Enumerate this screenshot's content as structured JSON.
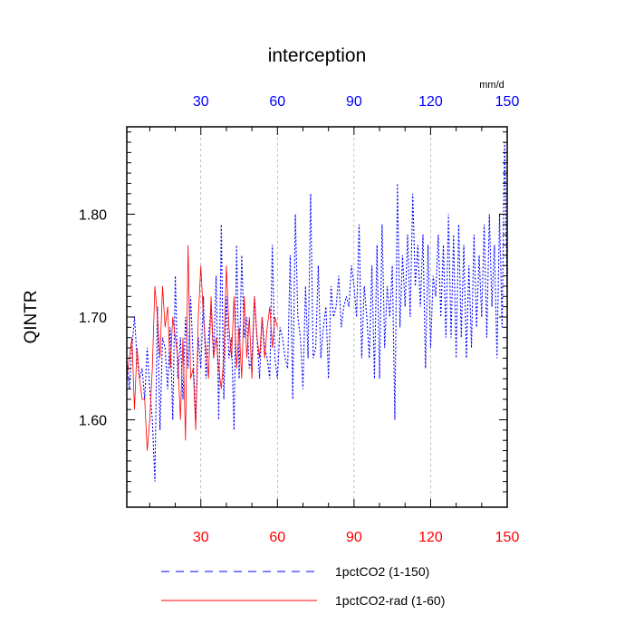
{
  "chart_data": {
    "type": "line",
    "title": "interception",
    "ylabel": "QINTR",
    "units": "mm/d",
    "xlim": [
      1,
      150
    ],
    "ylim": [
      1.515,
      1.885
    ],
    "grid": "vertical dashed at 30, 60, 90, 120",
    "legend_position": "bottom",
    "x_ticks_top": [
      "30",
      "60",
      "90",
      "120",
      "150"
    ],
    "x_ticks_bottom": [
      "30",
      "60",
      "90",
      "120",
      "150"
    ],
    "y_ticks": [
      "1.60",
      "1.70",
      "1.80"
    ],
    "colors": {
      "series_1": "#0000ff",
      "series_2": "#ff0000",
      "top_axis_labels": "#0000ff",
      "bottom_axis_labels": "#ff0000",
      "grid": "#999999"
    },
    "series": [
      {
        "name": "1pctCO2 (1-150)",
        "style": "dashed",
        "color": "#0000ff",
        "x_start": 1,
        "values": [
          1.66,
          1.63,
          1.67,
          1.7,
          1.66,
          1.64,
          1.65,
          1.62,
          1.67,
          1.63,
          1.6,
          1.54,
          1.71,
          1.59,
          1.68,
          1.67,
          1.63,
          1.69,
          1.6,
          1.74,
          1.64,
          1.68,
          1.62,
          1.7,
          1.65,
          1.72,
          1.66,
          1.6,
          1.68,
          1.65,
          1.72,
          1.64,
          1.68,
          1.71,
          1.66,
          1.74,
          1.6,
          1.79,
          1.62,
          1.72,
          1.66,
          1.68,
          1.59,
          1.77,
          1.64,
          1.76,
          1.68,
          1.7,
          1.65,
          1.66,
          1.72,
          1.68,
          1.64,
          1.7,
          1.67,
          1.66,
          1.64,
          1.77,
          1.66,
          1.64,
          1.69,
          1.68,
          1.66,
          1.65,
          1.76,
          1.62,
          1.8,
          1.7,
          1.68,
          1.63,
          1.73,
          1.66,
          1.82,
          1.66,
          1.67,
          1.75,
          1.66,
          1.69,
          1.71,
          1.64,
          1.73,
          1.7,
          1.71,
          1.74,
          1.69,
          1.71,
          1.72,
          1.71,
          1.75,
          1.73,
          1.7,
          1.79,
          1.66,
          1.73,
          1.7,
          1.66,
          1.75,
          1.64,
          1.77,
          1.64,
          1.79,
          1.67,
          1.73,
          1.7,
          1.75,
          1.6,
          1.83,
          1.69,
          1.76,
          1.71,
          1.78,
          1.7,
          1.82,
          1.73,
          1.77,
          1.71,
          1.78,
          1.65,
          1.77,
          1.67,
          1.74,
          1.72,
          1.78,
          1.7,
          1.77,
          1.68,
          1.8,
          1.68,
          1.78,
          1.66,
          1.79,
          1.68,
          1.77,
          1.66,
          1.75,
          1.67,
          1.78,
          1.69,
          1.76,
          1.7,
          1.79,
          1.68,
          1.8,
          1.71,
          1.77,
          1.66,
          1.8,
          1.69,
          1.87,
          1.72
        ]
      },
      {
        "name": "1pctCO2-rad (1-60)",
        "style": "solid",
        "color": "#ff0000",
        "x_start": 1,
        "values": [
          1.64,
          1.66,
          1.68,
          1.61,
          1.67,
          1.64,
          1.62,
          1.62,
          1.57,
          1.6,
          1.65,
          1.73,
          1.7,
          1.66,
          1.73,
          1.69,
          1.71,
          1.65,
          1.7,
          1.68,
          1.66,
          1.6,
          1.68,
          1.58,
          1.77,
          1.64,
          1.65,
          1.59,
          1.7,
          1.75,
          1.7,
          1.67,
          1.64,
          1.72,
          1.66,
          1.68,
          1.65,
          1.63,
          1.66,
          1.75,
          1.69,
          1.66,
          1.72,
          1.65,
          1.69,
          1.64,
          1.72,
          1.66,
          1.7,
          1.64,
          1.72,
          1.68,
          1.66,
          1.7,
          1.66,
          1.69,
          1.71,
          1.67,
          1.7,
          1.69
        ]
      }
    ]
  }
}
